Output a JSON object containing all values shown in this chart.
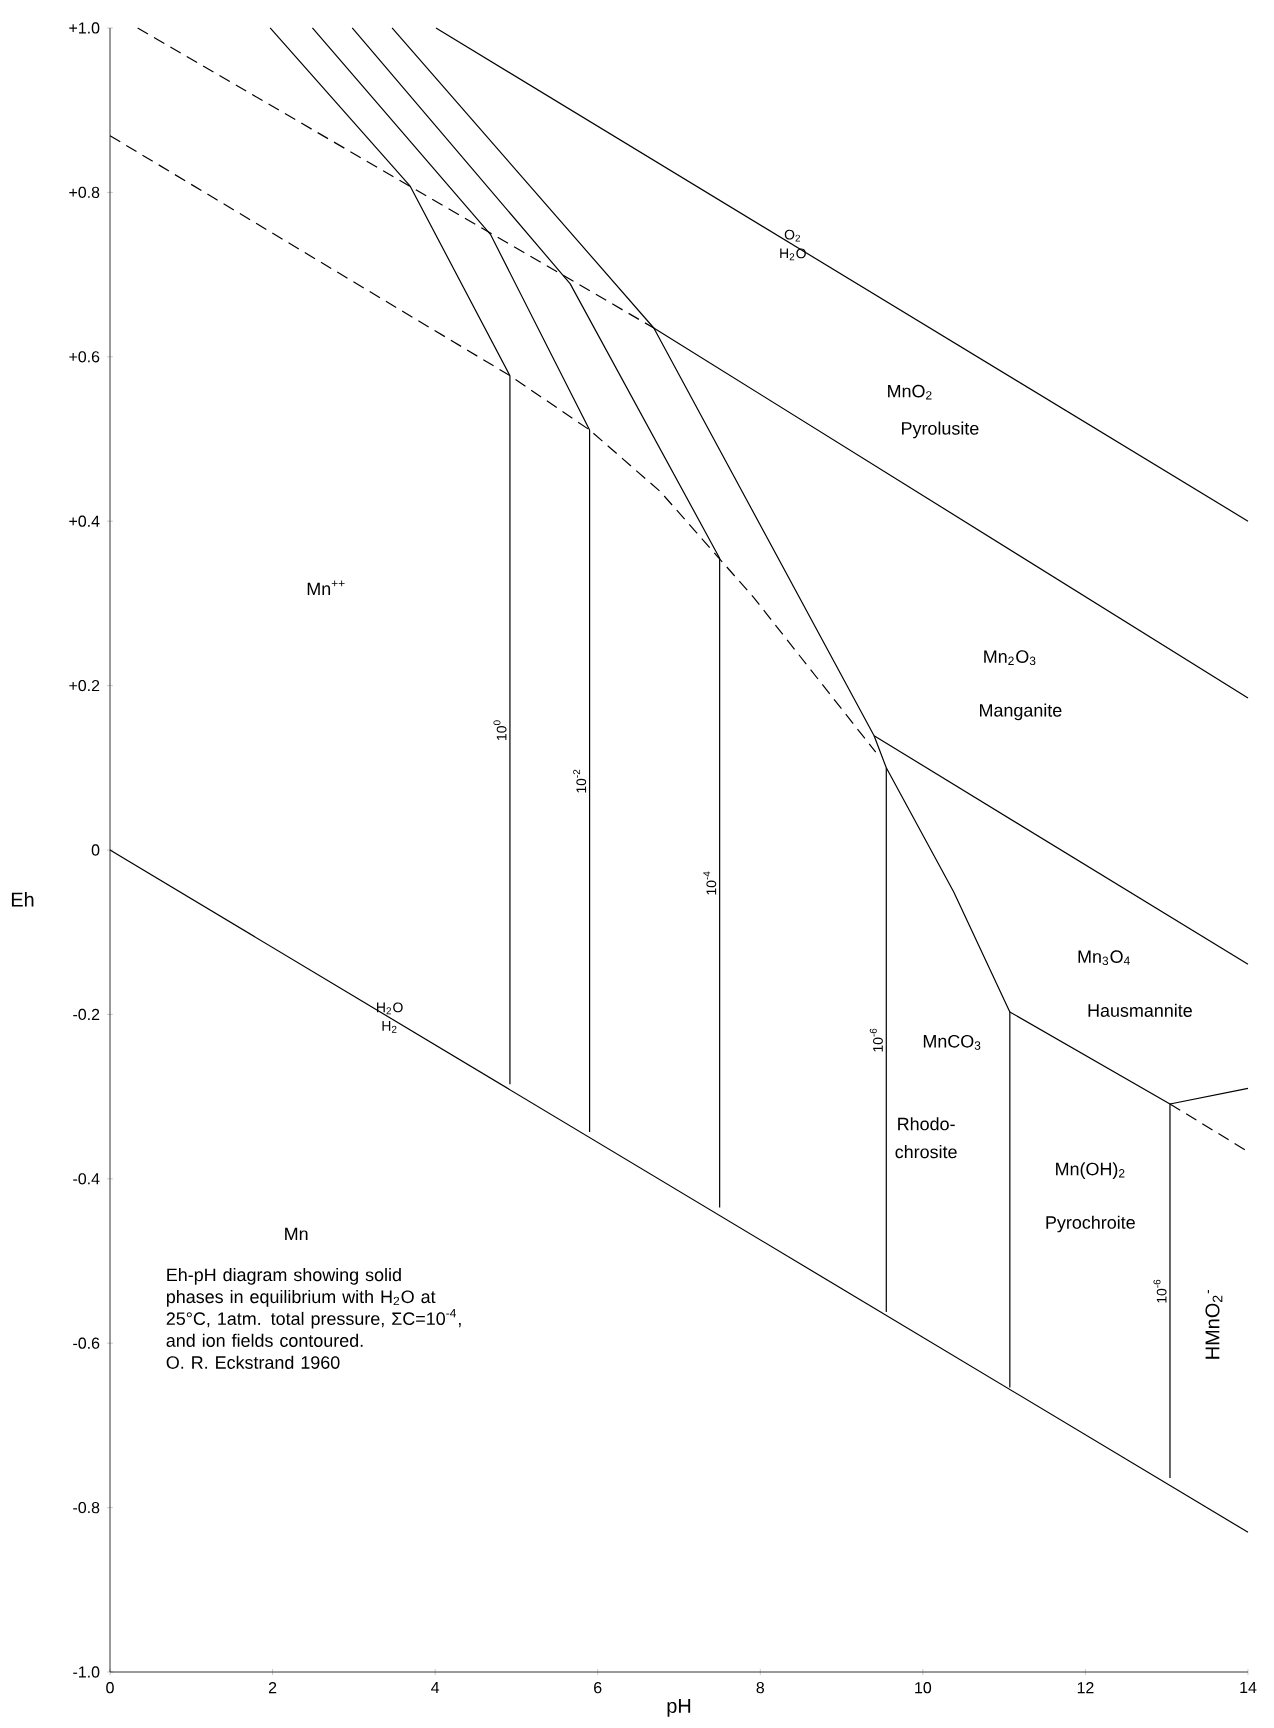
{
  "chart_data": {
    "type": "line",
    "xlabel": "pH",
    "ylabel": "Eh",
    "xlim": [
      0,
      14
    ],
    "ylim": [
      -1.0,
      1.0
    ],
    "xticks": [
      0,
      2,
      4,
      6,
      8,
      10,
      12,
      14
    ],
    "yticks": [
      {
        "value": 1.0,
        "label": "+1.0"
      },
      {
        "value": 0.8,
        "label": "+0.8"
      },
      {
        "value": 0.6,
        "label": "+0.6"
      },
      {
        "value": 0.4,
        "label": "+0.4"
      },
      {
        "value": 0.2,
        "label": "+0.2"
      },
      {
        "value": 0,
        "label": "0"
      },
      {
        "value": -0.2,
        "label": "-0.2"
      },
      {
        "value": -0.4,
        "label": "-0.4"
      },
      {
        "value": -0.6,
        "label": "-0.6"
      },
      {
        "value": -0.8,
        "label": "-0.8"
      },
      {
        "value": -1.0,
        "label": "-1.0"
      }
    ],
    "line_style": "solid",
    "series": [
      {
        "color": "#000000",
        "x": [
          0,
          14
        ],
        "values": [
          0,
          -0.83
        ]
      },
      {
        "color": "#000000",
        "x": [
          4.01,
          14
        ],
        "values": [
          1.0,
          0.4
        ]
      },
      {
        "color": "#000000",
        "line_style": "dashed",
        "x": [
          0.34,
          6.69
        ],
        "values": [
          1.0,
          0.635
        ]
      },
      {
        "color": "#000000",
        "line_style": "dashed",
        "x": [
          0,
          4.92,
          5.9,
          6.77,
          7.92,
          9.42
        ],
        "values": [
          0.869,
          0.577,
          0.511,
          0.436,
          0.307,
          0.119
        ]
      },
      {
        "name": "10$^{0}$",
        "color": "#000000",
        "x": [
          1.97,
          3.69,
          4.92,
          4.92
        ],
        "values": [
          1.0,
          0.808,
          0.577,
          -0.285
        ]
      },
      {
        "name": "10$^{-2}$",
        "color": "#000000",
        "x": [
          2.49,
          4.68,
          5.9,
          5.9
        ],
        "values": [
          1.0,
          0.749,
          0.511,
          -0.343
        ]
      },
      {
        "name": "10$^{-4}$",
        "color": "#000000",
        "x": [
          2.98,
          5.66,
          7.5,
          7.5
        ],
        "values": [
          1.0,
          0.689,
          0.355,
          -0.435
        ]
      },
      {
        "name": "10$^{-6}$",
        "color": "#000000",
        "x": [
          3.47,
          6.69,
          9.4,
          9.55,
          9.55
        ],
        "values": [
          1.0,
          0.635,
          0.139,
          0.1,
          -0.562
        ]
      },
      {
        "color": "#000000",
        "x": [
          9.55,
          10.38,
          11.07,
          11.07
        ],
        "values": [
          0.1,
          -0.051,
          -0.197,
          -0.654
        ]
      },
      {
        "color": "#000000",
        "x": [
          6.69,
          14
        ],
        "values": [
          0.635,
          0.185
        ]
      },
      {
        "color": "#000000",
        "x": [
          9.4,
          14
        ],
        "values": [
          0.139,
          -0.139
        ]
      },
      {
        "name": "10$^{-6}$",
        "color": "#000000",
        "x": [
          11.07,
          13.04,
          13.04
        ],
        "values": [
          -0.197,
          -0.309,
          -0.764
        ]
      },
      {
        "color": "#000000",
        "x": [
          13.04,
          14
        ],
        "values": [
          -0.309,
          -0.29
        ]
      },
      {
        "color": "#000000",
        "line_style": "dashed",
        "x": [
          13.04,
          14
        ],
        "values": [
          -0.309,
          -0.367
        ]
      }
    ],
    "annotations": [
      "O$_{2}$",
      "H$_{2}$O",
      "H$_{2}$O",
      "H$_{2}$",
      "MnO$_{2}$",
      "Pyrolusite",
      "Mn$_{2}$O$_{3}$",
      "Manganite",
      "Mn$_{3}$O$_{4}$",
      "Hausmannite",
      "MnCO$_{3}$",
      "Rhodo-",
      "chrosite",
      "Mn(OH)$_{2}$",
      "Pyrochroite",
      "HMnO$_{2}$$^{-}$",
      "Mn$^{++}$",
      "Mn",
      "Eh-pH diagram showing solid phases in equilibrium with H$_{2}$O at 25°C, 1atm. total pressure, ΣC=10$^{-4}$, and ion fields contoured.",
      "O. R. Eckstrand 1960"
    ]
  }
}
